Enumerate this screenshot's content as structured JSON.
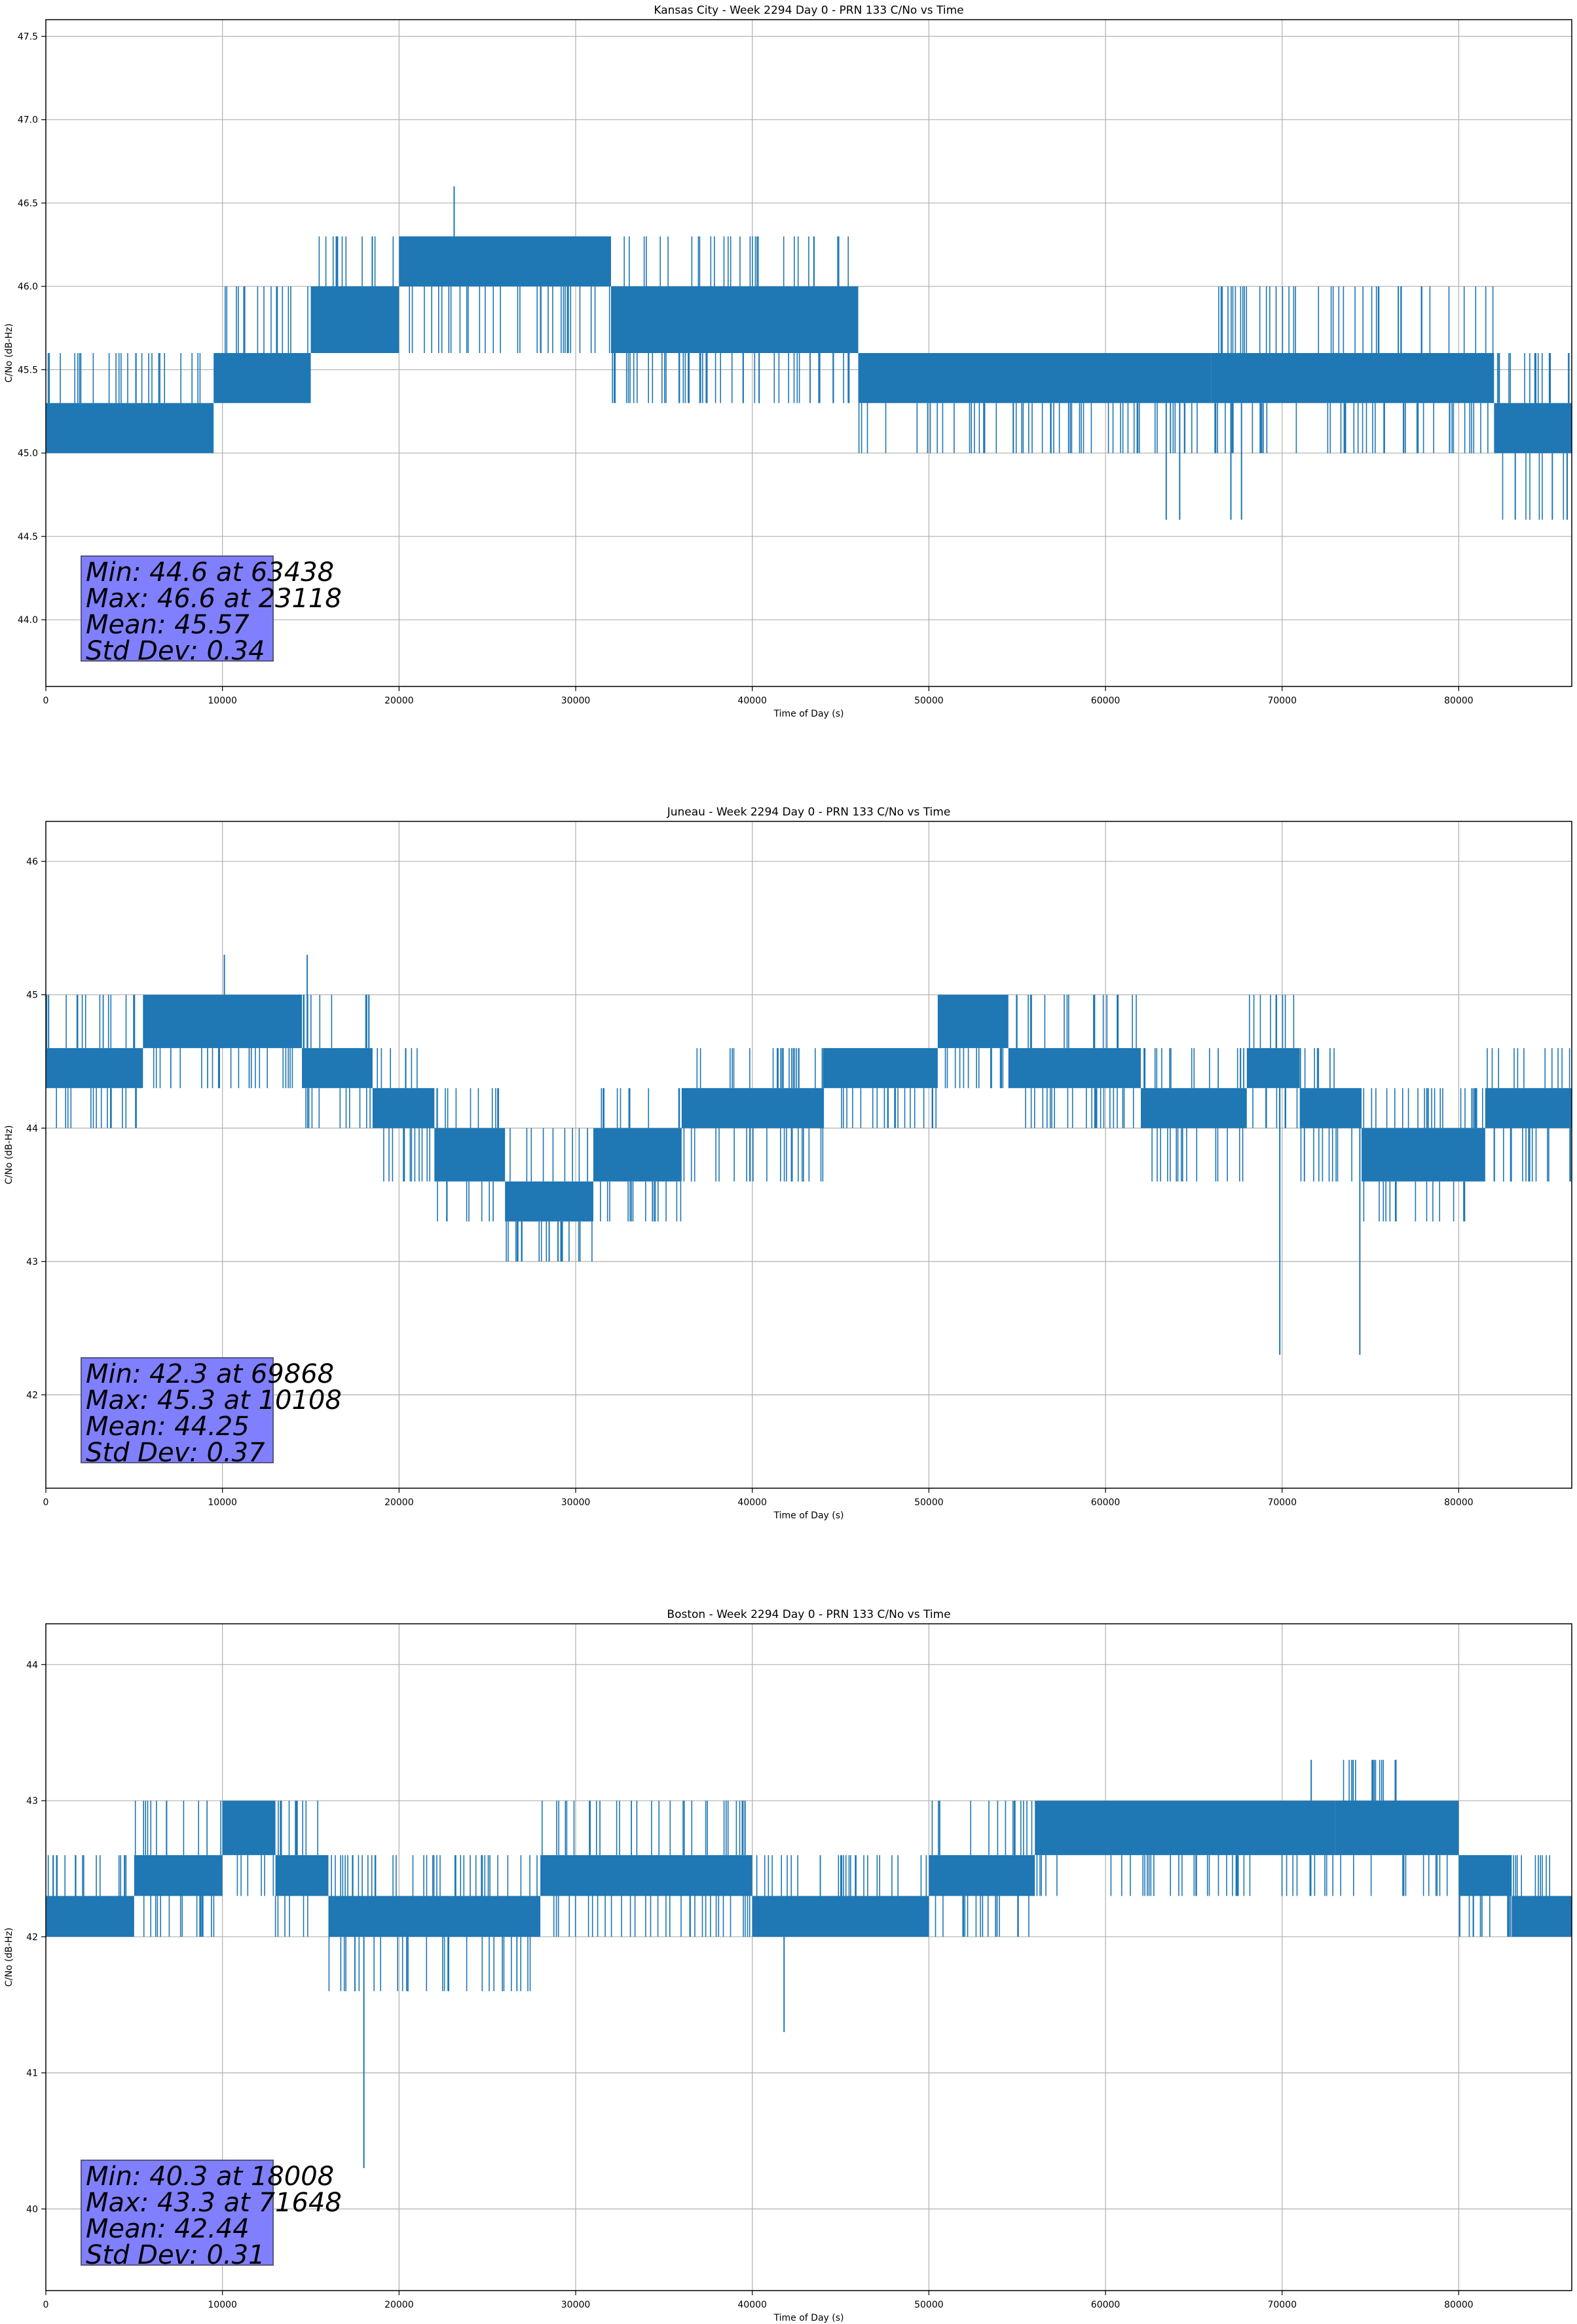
{
  "colors": {
    "series": "#1f77b4",
    "grid": "#b0b0b0",
    "statbox": "#8080ff"
  },
  "chart_data": [
    {
      "type": "line",
      "title": "Kansas City - Week 2294 Day 0 - PRN 133 C/No vs Time",
      "xlabel": "Time of Day (s)",
      "ylabel": "C/No (dB-Hz)",
      "xlim": [
        0,
        86400
      ],
      "ylim": [
        43.6,
        47.6
      ],
      "xticks": [
        0,
        10000,
        20000,
        30000,
        40000,
        50000,
        60000,
        70000,
        80000
      ],
      "xtick_labels": [
        "0",
        "10000",
        "20000",
        "30000",
        "40000",
        "50000",
        "60000",
        "70000",
        "80000"
      ],
      "yticks": [
        44.0,
        44.5,
        45.0,
        45.5,
        46.0,
        46.5,
        47.0,
        47.5
      ],
      "ytick_labels": [
        "44.0",
        "44.5",
        "45.0",
        "45.5",
        "46.0",
        "46.5",
        "47.0",
        "47.5"
      ],
      "grid": true,
      "bands": [
        {
          "x": [
            0,
            9500
          ],
          "lo": 45.0,
          "hi": 45.3,
          "flick_lo": 45.0,
          "flick_hi": 45.6
        },
        {
          "x": [
            9500,
            15000
          ],
          "lo": 45.3,
          "hi": 45.6,
          "flick_lo": 45.3,
          "flick_hi": 46.0
        },
        {
          "x": [
            15000,
            20000
          ],
          "lo": 45.6,
          "hi": 46.0,
          "flick_lo": 45.6,
          "flick_hi": 46.3
        },
        {
          "x": [
            20000,
            32000
          ],
          "lo": 46.0,
          "hi": 46.3,
          "flick_lo": 45.6,
          "flick_hi": 46.3
        },
        {
          "x": [
            32000,
            46000
          ],
          "lo": 45.6,
          "hi": 46.0,
          "flick_lo": 45.3,
          "flick_hi": 46.3
        },
        {
          "x": [
            46000,
            66000
          ],
          "lo": 45.3,
          "hi": 45.6,
          "flick_lo": 45.0,
          "flick_hi": 45.6
        },
        {
          "x": [
            66000,
            82000
          ],
          "lo": 45.3,
          "hi": 45.6,
          "flick_lo": 45.0,
          "flick_hi": 46.0
        },
        {
          "x": [
            82000,
            86400
          ],
          "lo": 45.0,
          "hi": 45.3,
          "flick_lo": 44.6,
          "flick_hi": 45.6
        }
      ],
      "spikes": [
        [
          23118,
          46.6
        ],
        [
          63438,
          44.6
        ],
        [
          64200,
          44.6
        ],
        [
          67100,
          44.6
        ],
        [
          67700,
          44.6
        ],
        [
          83200,
          44.6
        ],
        [
          85300,
          44.6
        ]
      ],
      "stats": {
        "min": "Min: 44.6 at 63438",
        "max": "Max: 46.6 at 23118",
        "mean": "Mean: 45.57",
        "std": "Std Dev: 0.34"
      }
    },
    {
      "type": "line",
      "title": "Juneau - Week 2294 Day 0 - PRN 133 C/No vs Time",
      "xlabel": "Time of Day (s)",
      "ylabel": "C/No (dB-Hz)",
      "xlim": [
        0,
        86400
      ],
      "ylim": [
        41.3,
        46.3
      ],
      "xticks": [
        0,
        10000,
        20000,
        30000,
        40000,
        50000,
        60000,
        70000,
        80000
      ],
      "xtick_labels": [
        "0",
        "10000",
        "20000",
        "30000",
        "40000",
        "50000",
        "60000",
        "70000",
        "80000"
      ],
      "yticks": [
        42,
        43,
        44,
        45,
        46
      ],
      "ytick_labels": [
        "42",
        "43",
        "44",
        "45",
        "46"
      ],
      "grid": true,
      "bands": [
        {
          "x": [
            0,
            5500
          ],
          "lo": 44.3,
          "hi": 44.6,
          "flick_lo": 44.0,
          "flick_hi": 45.0
        },
        {
          "x": [
            5500,
            14500
          ],
          "lo": 44.6,
          "hi": 45.0,
          "flick_lo": 44.3,
          "flick_hi": 45.0
        },
        {
          "x": [
            14500,
            18500
          ],
          "lo": 44.3,
          "hi": 44.6,
          "flick_lo": 44.0,
          "flick_hi": 45.0
        },
        {
          "x": [
            18500,
            22000
          ],
          "lo": 44.0,
          "hi": 44.3,
          "flick_lo": 43.6,
          "flick_hi": 44.6
        },
        {
          "x": [
            22000,
            26000
          ],
          "lo": 43.6,
          "hi": 44.0,
          "flick_lo": 43.3,
          "flick_hi": 44.3
        },
        {
          "x": [
            26000,
            31000
          ],
          "lo": 43.3,
          "hi": 43.6,
          "flick_lo": 43.0,
          "flick_hi": 44.0
        },
        {
          "x": [
            31000,
            36000
          ],
          "lo": 43.6,
          "hi": 44.0,
          "flick_lo": 43.3,
          "flick_hi": 44.3
        },
        {
          "x": [
            36000,
            44000
          ],
          "lo": 44.0,
          "hi": 44.3,
          "flick_lo": 43.6,
          "flick_hi": 44.6
        },
        {
          "x": [
            44000,
            50500
          ],
          "lo": 44.3,
          "hi": 44.6,
          "flick_lo": 44.0,
          "flick_hi": 44.6
        },
        {
          "x": [
            50500,
            54500
          ],
          "lo": 44.6,
          "hi": 45.0,
          "flick_lo": 44.3,
          "flick_hi": 45.0
        },
        {
          "x": [
            54500,
            62000
          ],
          "lo": 44.3,
          "hi": 44.6,
          "flick_lo": 44.0,
          "flick_hi": 45.0
        },
        {
          "x": [
            62000,
            68000
          ],
          "lo": 44.0,
          "hi": 44.3,
          "flick_lo": 43.6,
          "flick_hi": 44.6
        },
        {
          "x": [
            68000,
            71000
          ],
          "lo": 44.3,
          "hi": 44.6,
          "flick_lo": 44.0,
          "flick_hi": 45.0
        },
        {
          "x": [
            71000,
            74500
          ],
          "lo": 44.0,
          "hi": 44.3,
          "flick_lo": 43.6,
          "flick_hi": 44.6
        },
        {
          "x": [
            74500,
            81500
          ],
          "lo": 43.6,
          "hi": 44.0,
          "flick_lo": 43.3,
          "flick_hi": 44.3
        },
        {
          "x": [
            81500,
            86400
          ],
          "lo": 44.0,
          "hi": 44.3,
          "flick_lo": 43.6,
          "flick_hi": 44.6
        }
      ],
      "spikes": [
        [
          10108,
          45.3
        ],
        [
          14800,
          45.3
        ],
        [
          69868,
          42.3
        ],
        [
          74400,
          42.3
        ],
        [
          28500,
          43.0
        ],
        [
          29000,
          43.0
        ]
      ],
      "stats": {
        "min": "Min: 42.3 at 69868",
        "max": "Max: 45.3 at 10108",
        "mean": "Mean: 44.25",
        "std": "Std Dev: 0.37"
      }
    },
    {
      "type": "line",
      "title": "Boston - Week 2294 Day 0 - PRN 133 C/No vs Time",
      "xlabel": "Time of Day (s)",
      "ylabel": "C/No (dB-Hz)",
      "xlim": [
        0,
        86400
      ],
      "ylim": [
        39.4,
        44.3
      ],
      "xticks": [
        0,
        10000,
        20000,
        30000,
        40000,
        50000,
        60000,
        70000,
        80000
      ],
      "xtick_labels": [
        "0",
        "10000",
        "20000",
        "30000",
        "40000",
        "50000",
        "60000",
        "70000",
        "80000"
      ],
      "yticks": [
        40,
        41,
        42,
        43,
        44
      ],
      "ytick_labels": [
        "40",
        "41",
        "42",
        "43",
        "44"
      ],
      "grid": true,
      "bands": [
        {
          "x": [
            0,
            5000
          ],
          "lo": 42.0,
          "hi": 42.3,
          "flick_lo": 42.0,
          "flick_hi": 42.6
        },
        {
          "x": [
            5000,
            10000
          ],
          "lo": 42.3,
          "hi": 42.6,
          "flick_lo": 42.0,
          "flick_hi": 43.0
        },
        {
          "x": [
            10000,
            13000
          ],
          "lo": 42.6,
          "hi": 43.0,
          "flick_lo": 42.3,
          "flick_hi": 43.0
        },
        {
          "x": [
            13000,
            16000
          ],
          "lo": 42.3,
          "hi": 42.6,
          "flick_lo": 42.0,
          "flick_hi": 43.0
        },
        {
          "x": [
            16000,
            28000
          ],
          "lo": 42.0,
          "hi": 42.3,
          "flick_lo": 41.6,
          "flick_hi": 42.6
        },
        {
          "x": [
            28000,
            40000
          ],
          "lo": 42.3,
          "hi": 42.6,
          "flick_lo": 42.0,
          "flick_hi": 43.0
        },
        {
          "x": [
            40000,
            50000
          ],
          "lo": 42.0,
          "hi": 42.3,
          "flick_lo": 42.0,
          "flick_hi": 42.6
        },
        {
          "x": [
            50000,
            56000
          ],
          "lo": 42.3,
          "hi": 42.6,
          "flick_lo": 42.0,
          "flick_hi": 43.0
        },
        {
          "x": [
            56000,
            73000
          ],
          "lo": 42.6,
          "hi": 43.0,
          "flick_lo": 42.3,
          "flick_hi": 43.0
        },
        {
          "x": [
            73000,
            77000
          ],
          "lo": 42.6,
          "hi": 43.0,
          "flick_lo": 42.3,
          "flick_hi": 43.3
        },
        {
          "x": [
            77000,
            80000
          ],
          "lo": 42.6,
          "hi": 43.0,
          "flick_lo": 42.3,
          "flick_hi": 43.0
        },
        {
          "x": [
            80000,
            83000
          ],
          "lo": 42.3,
          "hi": 42.6,
          "flick_lo": 42.0,
          "flick_hi": 42.6
        },
        {
          "x": [
            83000,
            86400
          ],
          "lo": 42.0,
          "hi": 42.3,
          "flick_lo": 42.0,
          "flick_hi": 42.6
        }
      ],
      "spikes": [
        [
          18008,
          40.3
        ],
        [
          41800,
          41.3
        ],
        [
          71648,
          43.3
        ],
        [
          17500,
          41.6
        ],
        [
          20500,
          41.6
        ]
      ],
      "stats": {
        "min": "Min: 40.3 at 18008",
        "max": "Max: 43.3 at 71648",
        "mean": "Mean: 42.44",
        "std": "Std Dev: 0.31"
      }
    }
  ]
}
